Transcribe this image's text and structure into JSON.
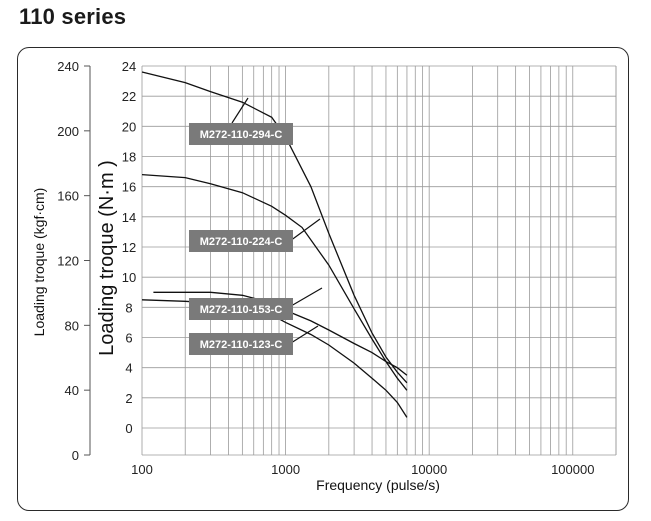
{
  "title": "110 series",
  "chart_data": {
    "type": "line",
    "title": "110 series",
    "xlabel": "Frequency (pulse/s)",
    "ylabel_left": "Loading troque (kgf·cm)",
    "ylabel_right": "Loading troque (N·m )",
    "x_scale": "log",
    "xlim": [
      100,
      200000
    ],
    "x_ticks": [
      100,
      1000,
      10000,
      100000
    ],
    "x_tick_labels": [
      "100",
      "1000",
      "10000",
      "100000"
    ],
    "ylim_nm": [
      0,
      24
    ],
    "y_ticks_nm": [
      0,
      2,
      4,
      6,
      8,
      10,
      12,
      14,
      16,
      18,
      20,
      22,
      24
    ],
    "y_tick_labels_nm": [
      "0",
      "2",
      "4",
      "6",
      "8",
      "10",
      "12",
      "14",
      "16",
      "18",
      "20",
      "22",
      "24"
    ],
    "y_ticks_kgf": [
      0,
      40,
      80,
      120,
      160,
      200,
      240
    ],
    "y_tick_labels_kgf": [
      "0",
      "40",
      "80",
      "120",
      "160",
      "200",
      "240"
    ],
    "grid": true,
    "series": [
      {
        "name": "M272-110-294-C",
        "x": [
          100,
          200,
          300,
          500,
          800,
          1000,
          1500,
          2000,
          3000,
          4000,
          5000,
          6000,
          7000
        ],
        "y": [
          23.6,
          22.9,
          22.3,
          21.6,
          20.6,
          19.3,
          16.0,
          12.9,
          8.8,
          6.3,
          4.7,
          3.7,
          3.0
        ]
      },
      {
        "name": "M272-110-224-C",
        "x": [
          100,
          200,
          300,
          500,
          800,
          1000,
          1300,
          2000,
          3000,
          4000,
          5000,
          6000,
          7000
        ],
        "y": [
          16.8,
          16.6,
          16.2,
          15.6,
          14.7,
          14.1,
          13.3,
          10.8,
          7.9,
          5.9,
          4.4,
          3.3,
          2.5
        ]
      },
      {
        "name": "M272-110-153-C",
        "x": [
          120,
          200,
          300,
          500,
          800,
          1000,
          1500,
          2000,
          3000,
          4000,
          5000,
          6000,
          7000
        ],
        "y": [
          9.0,
          9.0,
          9.0,
          8.8,
          8.3,
          7.8,
          7.1,
          6.5,
          5.6,
          5.0,
          4.4,
          4.0,
          3.5
        ]
      },
      {
        "name": "M272-110-123-C",
        "x": [
          100,
          200,
          300,
          500,
          800,
          1000,
          1500,
          2000,
          3000,
          4000,
          5000,
          6000,
          7000
        ],
        "y": [
          8.5,
          8.4,
          8.3,
          8.0,
          7.5,
          7.0,
          6.2,
          5.5,
          4.3,
          3.3,
          2.5,
          1.7,
          0.7
        ]
      }
    ]
  }
}
